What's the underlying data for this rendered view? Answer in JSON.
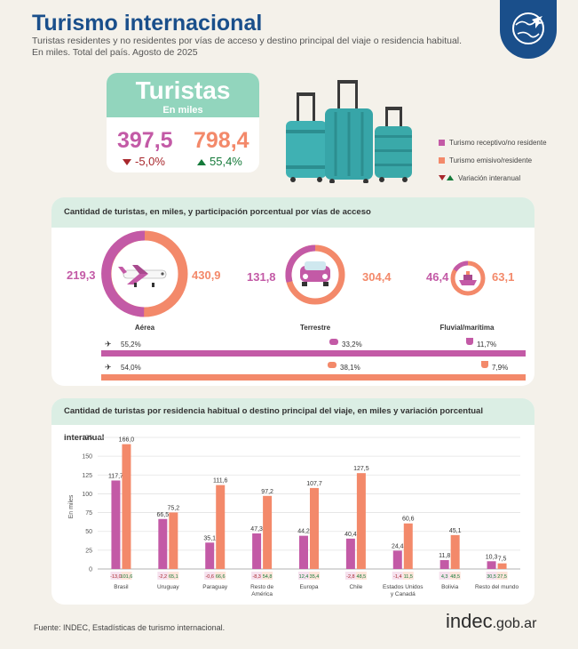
{
  "header": {
    "title": "Turismo internacional",
    "subtitle_line1": "Turistas residentes y no residentes por vías de acceso y destino principal del viaje o residencia habitual.",
    "subtitle_line2": "En miles. Total del país. Agosto de 2025"
  },
  "summary": {
    "title": "Turistas",
    "subtitle": "En miles",
    "receptivo_value": "397,5",
    "receptivo_var": "-5,0%",
    "emisivo_value": "798,4",
    "emisivo_var": "55,4%"
  },
  "legend": {
    "receptivo": "Turismo receptivo/no residente",
    "emisivo": "Turismo emisivo/residente",
    "variacion": "Variación interanual"
  },
  "colors": {
    "receptivo": "#c35aa6",
    "emisivo": "#f3896a",
    "header_green": "#92d5bd",
    "panel_head": "#dbeee4",
    "title_blue": "#1a4f8b",
    "neg": "#a8272c",
    "pos": "#157a3a"
  },
  "access": {
    "title": "Cantidad de turistas, en miles, y participación porcentual por vías de acceso",
    "modes": [
      {
        "name": "Aérea",
        "icon": "airplane-icon",
        "receptivo": "219,3",
        "emisivo": "430,9",
        "share_receptivo": "55,2%",
        "share_emisivo": "54,0%"
      },
      {
        "name": "Terrestre",
        "icon": "car-icon",
        "receptivo": "131,8",
        "emisivo": "304,4",
        "share_receptivo": "33,2%",
        "share_emisivo": "38,1%"
      },
      {
        "name": "Fluvial/marítima",
        "icon": "ship-icon",
        "receptivo": "46,4",
        "emisivo": "63,1",
        "share_receptivo": "11,7%",
        "share_emisivo": "7,9%"
      }
    ]
  },
  "chart_data": {
    "type": "bar",
    "title": "Cantidad de turistas por residencia habitual o destino principal del viaje, en miles y variación porcentual interanual",
    "ylabel": "En miles",
    "ylim": [
      0,
      175
    ],
    "yticks": [
      0,
      25,
      50,
      75,
      100,
      125,
      150,
      175
    ],
    "categories": [
      "Brasil",
      "Uruguay",
      "Paraguay",
      "Resto de América",
      "Europa",
      "Chile",
      "Estados Unidos y Canadá",
      "Bolivia",
      "Resto del mundo"
    ],
    "series": [
      {
        "name": "Turismo receptivo/no residente",
        "values": [
          117.7,
          66.5,
          35.1,
          47.3,
          44.2,
          40.4,
          24.4,
          11.8,
          10.3
        ],
        "labels": [
          "117,7",
          "66,5",
          "35,1",
          "47,3",
          "44,2",
          "40,4",
          "24,4",
          "11,8",
          "10,3"
        ],
        "var": [
          "-13,0",
          "-2,2",
          "-0,6",
          "-8,3",
          "12,4",
          "-2,8",
          "-1,4",
          "4,3",
          "30,5"
        ],
        "var_sign": [
          -1,
          -1,
          -1,
          -1,
          1,
          -1,
          -1,
          1,
          1
        ]
      },
      {
        "name": "Turismo emisivo/residente",
        "values": [
          166.0,
          75.2,
          111.6,
          97.2,
          107.7,
          127.5,
          60.6,
          45.1,
          7.5
        ],
        "labels": [
          "166,0",
          "75,2",
          "111,6",
          "97,2",
          "107,7",
          "127,5",
          "60,6",
          "45,1",
          "7,5"
        ],
        "var": [
          "101,6",
          "65,1",
          "66,6",
          "54,8",
          "35,4",
          "48,5",
          "11,5",
          "48,5",
          "27,5"
        ],
        "var_sign": [
          1,
          1,
          1,
          1,
          1,
          1,
          1,
          1,
          1
        ]
      }
    ],
    "grid": true
  },
  "footer": {
    "source": "Fuente: INDEC, Estadísticas de turismo internacional.",
    "brand_main": "indec",
    "brand_suffix": ".gob.ar"
  }
}
